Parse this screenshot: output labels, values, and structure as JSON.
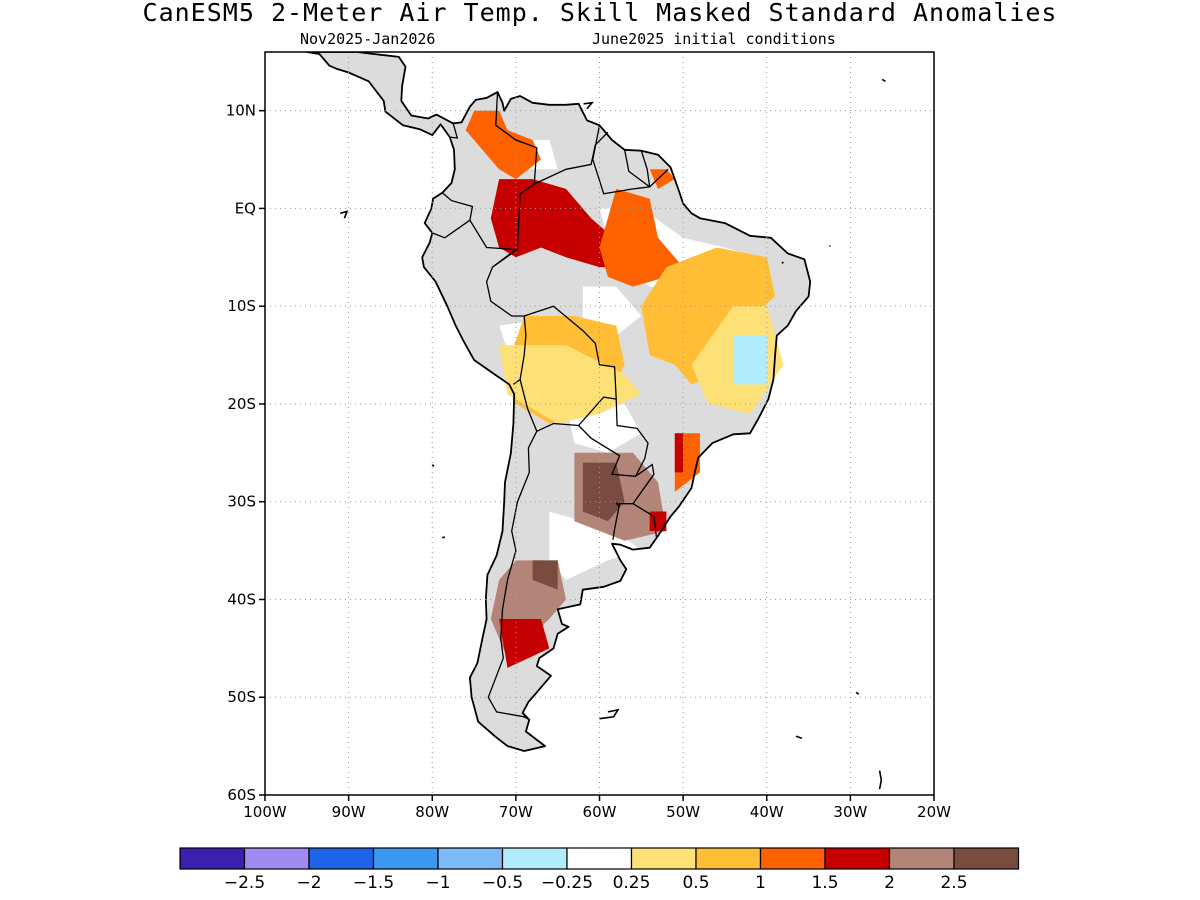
{
  "title": "CanESM5 2-Meter Air Temp. Skill Masked Standard Anomalies",
  "subtitle_left": "Nov2025-Jan2026",
  "subtitle_right": "June2025 initial conditions",
  "map": {
    "lon_range": [
      -100,
      -20
    ],
    "lat_range": [
      -60,
      16
    ],
    "lat_ticks": [
      {
        "value": 10,
        "label": "10N"
      },
      {
        "value": 0,
        "label": "EQ"
      },
      {
        "value": -10,
        "label": "10S"
      },
      {
        "value": -20,
        "label": "20S"
      },
      {
        "value": -30,
        "label": "30S"
      },
      {
        "value": -40,
        "label": "40S"
      },
      {
        "value": -50,
        "label": "50S"
      },
      {
        "value": -60,
        "label": "60S"
      }
    ],
    "lon_ticks": [
      {
        "value": -100,
        "label": "100W"
      },
      {
        "value": -90,
        "label": "90W"
      },
      {
        "value": -80,
        "label": "80W"
      },
      {
        "value": -70,
        "label": "70W"
      },
      {
        "value": -60,
        "label": "60W"
      },
      {
        "value": -50,
        "label": "50W"
      },
      {
        "value": -40,
        "label": "40W"
      },
      {
        "value": -30,
        "label": "30W"
      },
      {
        "value": -20,
        "label": "20W"
      }
    ],
    "grid": "dotted",
    "masked_color": "#dcdcdc",
    "anomaly_regions": [
      {
        "name": "northwest-colombia-venezuela",
        "category": "1.5",
        "polygon": [
          [
            -75,
            10
          ],
          [
            -72,
            10
          ],
          [
            -71,
            8
          ],
          [
            -68,
            7
          ],
          [
            -67,
            5
          ],
          [
            -70,
            3
          ],
          [
            -72,
            4
          ],
          [
            -74,
            6
          ],
          [
            -76,
            8
          ]
        ]
      },
      {
        "name": "western-amazon-peak",
        "category": "2",
        "polygon": [
          [
            -72,
            3
          ],
          [
            -68,
            3
          ],
          [
            -64,
            2
          ],
          [
            -61,
            -1
          ],
          [
            -57,
            -4
          ],
          [
            -55,
            -6
          ],
          [
            -60,
            -6
          ],
          [
            -64,
            -5
          ],
          [
            -67,
            -4
          ],
          [
            -70,
            -5
          ],
          [
            -72,
            -4
          ],
          [
            -73,
            -1
          ]
        ]
      },
      {
        "name": "central-brazil-orange",
        "category": "1.5",
        "polygon": [
          [
            -58,
            2
          ],
          [
            -54,
            1
          ],
          [
            -53,
            -3
          ],
          [
            -50,
            -6
          ],
          [
            -52,
            -7
          ],
          [
            -56,
            -8
          ],
          [
            -59,
            -7
          ],
          [
            -60,
            -4
          ]
        ]
      },
      {
        "name": "guianas-orange",
        "category": "1.5",
        "polygon": [
          [
            -54,
            4
          ],
          [
            -52,
            4
          ],
          [
            -51,
            3
          ],
          [
            -53,
            2
          ]
        ]
      },
      {
        "name": "northeast-brazil-warm",
        "category": "1",
        "polygon": [
          [
            -52,
            -6
          ],
          [
            -46,
            -4
          ],
          [
            -40,
            -5
          ],
          [
            -39,
            -9
          ],
          [
            -43,
            -12
          ],
          [
            -46,
            -17
          ],
          [
            -49,
            -18
          ],
          [
            -51,
            -16
          ],
          [
            -54,
            -15
          ],
          [
            -55,
            -10
          ]
        ]
      },
      {
        "name": "bolivia-warm",
        "category": "1",
        "polygon": [
          [
            -69,
            -11
          ],
          [
            -63,
            -11
          ],
          [
            -58,
            -12
          ],
          [
            -57,
            -16
          ],
          [
            -59,
            -19
          ],
          [
            -62,
            -21
          ],
          [
            -66,
            -22
          ],
          [
            -70,
            -20
          ],
          [
            -71,
            -16
          ]
        ]
      },
      {
        "name": "bolivia-light",
        "category": "0.5",
        "polygon": [
          [
            -72,
            -14
          ],
          [
            -64,
            -14
          ],
          [
            -57,
            -17
          ],
          [
            -55,
            -19
          ],
          [
            -60,
            -21
          ],
          [
            -65,
            -22
          ],
          [
            -71,
            -19
          ]
        ]
      },
      {
        "name": "east-brazil-light",
        "category": "0.5",
        "polygon": [
          [
            -44,
            -10
          ],
          [
            -40,
            -10
          ],
          [
            -38,
            -16
          ],
          [
            -42,
            -21
          ],
          [
            -47,
            -20
          ],
          [
            -49,
            -16
          ]
        ]
      },
      {
        "name": "east-brazil-cold",
        "category": "-0.5",
        "polygon": [
          [
            -44,
            -13
          ],
          [
            -40,
            -13
          ],
          [
            -40,
            -18
          ],
          [
            -44,
            -18
          ]
        ]
      },
      {
        "name": "southeast-brazil-orange",
        "category": "1.5",
        "polygon": [
          [
            -51,
            -23
          ],
          [
            -48,
            -23
          ],
          [
            -48,
            -27
          ],
          [
            -51,
            -29
          ]
        ]
      },
      {
        "name": "southeast-brazil-red",
        "category": "2",
        "polygon": [
          [
            -51,
            -23
          ],
          [
            -50,
            -23
          ],
          [
            -50,
            -27
          ],
          [
            -51,
            -27
          ]
        ]
      },
      {
        "name": "paraguay-pink",
        "category": "2.5",
        "polygon": [
          [
            -63,
            -25
          ],
          [
            -56,
            -25
          ],
          [
            -53,
            -28
          ],
          [
            -52,
            -33
          ],
          [
            -57,
            -34
          ],
          [
            -63,
            -32
          ]
        ]
      },
      {
        "name": "paraguay-brown",
        "category": "2.5",
        "polygon": [
          [
            -62,
            -26
          ],
          [
            -58,
            -26
          ],
          [
            -57,
            -30
          ],
          [
            -59,
            -32
          ],
          [
            -62,
            -31
          ]
        ]
      },
      {
        "name": "uruguay-red",
        "category": "2",
        "polygon": [
          [
            -54,
            -31
          ],
          [
            -52,
            -31
          ],
          [
            -52,
            -33
          ],
          [
            -54,
            -33
          ]
        ]
      },
      {
        "name": "patagonia-pink",
        "category": "2.5",
        "polygon": [
          [
            -70,
            -36
          ],
          [
            -65,
            -36
          ],
          [
            -64,
            -40
          ],
          [
            -66,
            -42
          ],
          [
            -71,
            -46
          ],
          [
            -73,
            -42
          ],
          [
            -72,
            -38
          ]
        ]
      },
      {
        "name": "patagonia-brown",
        "category": "2.5",
        "polygon": [
          [
            -68,
            -36
          ],
          [
            -65,
            -36
          ],
          [
            -65,
            -39
          ],
          [
            -68,
            -38
          ]
        ]
      },
      {
        "name": "patagonia-red",
        "category": "2",
        "polygon": [
          [
            -72,
            -42
          ],
          [
            -67,
            -42
          ],
          [
            -66,
            -45
          ],
          [
            -71,
            -47
          ]
        ]
      }
    ]
  },
  "colorbar": {
    "colors": [
      "#3a1fb0",
      "#a08bf3",
      "#1e64e8",
      "#3b97ef",
      "#7bb9f7",
      "#b0ecf9",
      "#ffffff",
      "#fde177",
      "#ffbe36",
      "#fd6100",
      "#c60000",
      "#b38579",
      "#7a4c3f"
    ],
    "labels": [
      "-2.5",
      "-2",
      "-1.5",
      "-1",
      "-0.5",
      "-0.25",
      "0.25",
      "0.5",
      "1",
      "1.5",
      "2",
      "2.5"
    ]
  }
}
